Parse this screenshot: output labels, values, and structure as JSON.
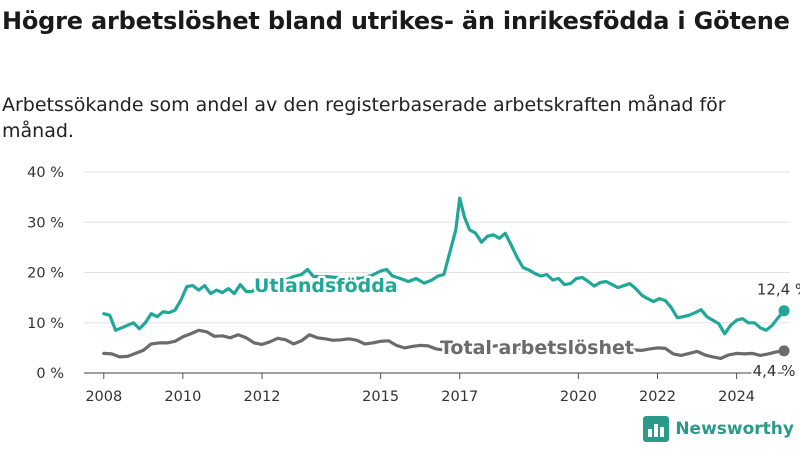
{
  "title": "Högre arbetslöshet bland utrikes- än inrikesfödda i Götene",
  "subtitle": "Arbetssökande som andel av den registerbaserade arbetskraften månad för månad.",
  "brand": {
    "name": "Newsworthy",
    "logo_icon": "bar-chart-icon",
    "color": "#2a9a8a"
  },
  "chart_data": {
    "type": "line",
    "x_unit": "year (decimal, monthly data)",
    "ylim": [
      0,
      40
    ],
    "xlim": [
      2007.5,
      2025.3
    ],
    "y_ticks": [
      0,
      10,
      20,
      30,
      40
    ],
    "y_tick_labels": [
      "0 %",
      "10 %",
      "20 %",
      "30 %",
      "40 %"
    ],
    "x_ticks": [
      2008,
      2010,
      2012,
      2015,
      2017,
      2020,
      2022,
      2024
    ],
    "x_tick_labels": [
      "2008",
      "2010",
      "2012",
      "2015",
      "2017",
      "2020",
      "2022",
      "2024"
    ],
    "grid": true,
    "series": [
      {
        "name": "Utlandsfödda",
        "color": "#1fa898",
        "end_label": "12,4 %",
        "points": [
          [
            2008.0,
            11.8
          ],
          [
            2008.15,
            11.5
          ],
          [
            2008.3,
            8.5
          ],
          [
            2008.45,
            9.0
          ],
          [
            2008.6,
            9.5
          ],
          [
            2008.75,
            10.0
          ],
          [
            2008.9,
            8.8
          ],
          [
            2009.05,
            10.0
          ],
          [
            2009.2,
            11.8
          ],
          [
            2009.35,
            11.2
          ],
          [
            2009.5,
            12.2
          ],
          [
            2009.65,
            12.0
          ],
          [
            2009.8,
            12.5
          ],
          [
            2009.95,
            14.5
          ],
          [
            2010.1,
            17.2
          ],
          [
            2010.25,
            17.4
          ],
          [
            2010.4,
            16.5
          ],
          [
            2010.55,
            17.4
          ],
          [
            2010.7,
            15.8
          ],
          [
            2010.85,
            16.5
          ],
          [
            2011.0,
            16.0
          ],
          [
            2011.15,
            16.8
          ],
          [
            2011.3,
            15.8
          ],
          [
            2011.45,
            17.6
          ],
          [
            2011.6,
            16.2
          ],
          [
            2011.75,
            16.2
          ],
          [
            2011.9,
            17.3
          ],
          [
            2012.05,
            17.8
          ],
          [
            2012.2,
            17.0
          ],
          [
            2012.4,
            17.6
          ],
          [
            2012.6,
            18.5
          ],
          [
            2012.8,
            19.2
          ],
          [
            2013.0,
            19.6
          ],
          [
            2013.15,
            20.6
          ],
          [
            2013.3,
            19.2
          ],
          [
            2013.6,
            19.2
          ],
          [
            2013.9,
            19.0
          ],
          [
            2014.2,
            19.0
          ],
          [
            2014.5,
            18.8
          ],
          [
            2014.8,
            19.5
          ],
          [
            2015.0,
            20.3
          ],
          [
            2015.15,
            20.6
          ],
          [
            2015.3,
            19.3
          ],
          [
            2015.5,
            18.8
          ],
          [
            2015.7,
            18.2
          ],
          [
            2015.9,
            18.8
          ],
          [
            2016.1,
            17.9
          ],
          [
            2016.3,
            18.5
          ],
          [
            2016.45,
            19.3
          ],
          [
            2016.6,
            19.6
          ],
          [
            2016.75,
            24.0
          ],
          [
            2016.9,
            28.5
          ],
          [
            2017.0,
            34.8
          ],
          [
            2017.12,
            31.0
          ],
          [
            2017.25,
            28.5
          ],
          [
            2017.4,
            27.8
          ],
          [
            2017.55,
            26.0
          ],
          [
            2017.7,
            27.2
          ],
          [
            2017.85,
            27.5
          ],
          [
            2018.0,
            26.8
          ],
          [
            2018.15,
            27.8
          ],
          [
            2018.3,
            25.5
          ],
          [
            2018.45,
            23.0
          ],
          [
            2018.6,
            21.0
          ],
          [
            2018.75,
            20.5
          ],
          [
            2018.9,
            19.8
          ],
          [
            2019.05,
            19.3
          ],
          [
            2019.2,
            19.6
          ],
          [
            2019.35,
            18.5
          ],
          [
            2019.5,
            18.8
          ],
          [
            2019.65,
            17.6
          ],
          [
            2019.8,
            17.8
          ],
          [
            2019.95,
            18.8
          ],
          [
            2020.1,
            19.0
          ],
          [
            2020.25,
            18.2
          ],
          [
            2020.4,
            17.3
          ],
          [
            2020.55,
            18.0
          ],
          [
            2020.7,
            18.2
          ],
          [
            2020.85,
            17.6
          ],
          [
            2021.0,
            17.0
          ],
          [
            2021.15,
            17.4
          ],
          [
            2021.3,
            17.8
          ],
          [
            2021.45,
            16.8
          ],
          [
            2021.6,
            15.5
          ],
          [
            2021.75,
            14.8
          ],
          [
            2021.9,
            14.2
          ],
          [
            2022.05,
            14.8
          ],
          [
            2022.2,
            14.4
          ],
          [
            2022.35,
            13.0
          ],
          [
            2022.5,
            11.0
          ],
          [
            2022.65,
            11.2
          ],
          [
            2022.8,
            11.5
          ],
          [
            2022.95,
            12.0
          ],
          [
            2023.1,
            12.6
          ],
          [
            2023.25,
            11.2
          ],
          [
            2023.4,
            10.5
          ],
          [
            2023.55,
            9.8
          ],
          [
            2023.7,
            7.8
          ],
          [
            2023.85,
            9.5
          ],
          [
            2024.0,
            10.5
          ],
          [
            2024.15,
            10.8
          ],
          [
            2024.3,
            10.0
          ],
          [
            2024.45,
            10.0
          ],
          [
            2024.6,
            9.0
          ],
          [
            2024.75,
            8.5
          ],
          [
            2024.9,
            9.5
          ],
          [
            2025.05,
            11.0
          ],
          [
            2025.2,
            12.4
          ]
        ]
      },
      {
        "name": "Total arbetslöshet",
        "color": "#6b6b6b",
        "end_label": "4,4 %",
        "points": [
          [
            2008.0,
            3.9
          ],
          [
            2008.2,
            3.8
          ],
          [
            2008.4,
            3.2
          ],
          [
            2008.6,
            3.3
          ],
          [
            2008.8,
            3.9
          ],
          [
            2009.0,
            4.5
          ],
          [
            2009.2,
            5.8
          ],
          [
            2009.4,
            6.0
          ],
          [
            2009.6,
            6.0
          ],
          [
            2009.8,
            6.3
          ],
          [
            2010.0,
            7.2
          ],
          [
            2010.2,
            7.8
          ],
          [
            2010.4,
            8.5
          ],
          [
            2010.6,
            8.2
          ],
          [
            2010.8,
            7.3
          ],
          [
            2011.0,
            7.4
          ],
          [
            2011.2,
            7.0
          ],
          [
            2011.4,
            7.6
          ],
          [
            2011.6,
            7.0
          ],
          [
            2011.8,
            6.0
          ],
          [
            2012.0,
            5.7
          ],
          [
            2012.2,
            6.2
          ],
          [
            2012.4,
            6.9
          ],
          [
            2012.6,
            6.6
          ],
          [
            2012.8,
            5.8
          ],
          [
            2013.0,
            6.4
          ],
          [
            2013.2,
            7.6
          ],
          [
            2013.4,
            7.0
          ],
          [
            2013.6,
            6.8
          ],
          [
            2013.8,
            6.5
          ],
          [
            2014.0,
            6.6
          ],
          [
            2014.2,
            6.8
          ],
          [
            2014.4,
            6.5
          ],
          [
            2014.6,
            5.8
          ],
          [
            2014.8,
            6.0
          ],
          [
            2015.0,
            6.3
          ],
          [
            2015.2,
            6.4
          ],
          [
            2015.4,
            5.5
          ],
          [
            2015.6,
            5.0
          ],
          [
            2015.8,
            5.3
          ],
          [
            2016.0,
            5.5
          ],
          [
            2016.2,
            5.4
          ],
          [
            2016.4,
            4.8
          ],
          [
            2016.6,
            4.6
          ],
          [
            2016.8,
            5.0
          ],
          [
            2017.0,
            5.6
          ],
          [
            2017.2,
            5.4
          ],
          [
            2017.4,
            5.5
          ],
          [
            2017.6,
            5.2
          ],
          [
            2017.8,
            5.3
          ],
          [
            2018.0,
            5.5
          ],
          [
            2018.2,
            5.2
          ],
          [
            2018.4,
            5.0
          ],
          [
            2018.6,
            4.8
          ],
          [
            2018.8,
            4.7
          ],
          [
            2019.0,
            4.8
          ],
          [
            2019.2,
            4.9
          ],
          [
            2019.4,
            4.6
          ],
          [
            2019.6,
            4.7
          ],
          [
            2019.8,
            4.8
          ],
          [
            2020.0,
            5.0
          ],
          [
            2020.2,
            5.4
          ],
          [
            2020.4,
            5.2
          ],
          [
            2020.6,
            5.0
          ],
          [
            2020.8,
            5.1
          ],
          [
            2021.0,
            5.0
          ],
          [
            2021.2,
            4.8
          ],
          [
            2021.4,
            4.6
          ],
          [
            2021.6,
            4.5
          ],
          [
            2021.8,
            4.8
          ],
          [
            2022.0,
            5.0
          ],
          [
            2022.2,
            4.9
          ],
          [
            2022.4,
            3.8
          ],
          [
            2022.6,
            3.5
          ],
          [
            2022.8,
            3.9
          ],
          [
            2023.0,
            4.3
          ],
          [
            2023.2,
            3.6
          ],
          [
            2023.4,
            3.2
          ],
          [
            2023.6,
            2.9
          ],
          [
            2023.8,
            3.6
          ],
          [
            2024.0,
            3.9
          ],
          [
            2024.2,
            3.8
          ],
          [
            2024.4,
            3.9
          ],
          [
            2024.6,
            3.5
          ],
          [
            2024.8,
            3.8
          ],
          [
            2025.0,
            4.2
          ],
          [
            2025.2,
            4.4
          ]
        ]
      }
    ]
  }
}
